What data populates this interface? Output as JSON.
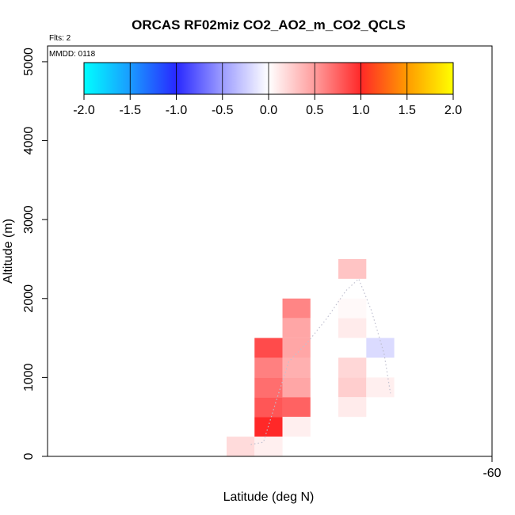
{
  "chart_data": {
    "type": "heatmap",
    "title": "ORCAS RF02miz CO2_AO2_m_CO2_QCLS",
    "flights_label": "Flts: 2",
    "date_label": "MMDD: 0118",
    "xlabel": "Latitude (deg N)",
    "ylabel": "Altitude (m)",
    "xlim": [
      -63.5,
      -60
    ],
    "ylim": [
      0,
      5200
    ],
    "x_ticks": [
      -60
    ],
    "y_ticks": [
      0,
      1000,
      2000,
      3000,
      4000,
      5000
    ],
    "colorbar": {
      "range": [
        -2.0,
        2.0
      ],
      "ticks": [
        "-2.0",
        "-1.5",
        "-1.0",
        "-0.5",
        "0.0",
        "0.5",
        "1.0",
        "1.5",
        "2.0"
      ],
      "stops": [
        {
          "value": -2.0,
          "color": "#00ffff"
        },
        {
          "value": -1.5,
          "color": "#1a9bff"
        },
        {
          "value": -1.0,
          "color": "#2828ff"
        },
        {
          "value": -0.5,
          "color": "#9c9cff"
        },
        {
          "value": 0.0,
          "color": "#ffffff"
        },
        {
          "value": 0.5,
          "color": "#ff9c9c"
        },
        {
          "value": 1.0,
          "color": "#ff2828"
        },
        {
          "value": 1.5,
          "color": "#ff9b00"
        },
        {
          "value": 2.0,
          "color": "#ffff00"
        }
      ]
    },
    "cell_size": {
      "dlat": 0.22,
      "dalt": 250
    },
    "cells": [
      {
        "lat": -61.1,
        "alt": 2375,
        "value": 0.3
      },
      {
        "lat": -61.54,
        "alt": 1875,
        "value": 0.6
      },
      {
        "lat": -61.1,
        "alt": 1875,
        "value": 0.03
      },
      {
        "lat": -61.54,
        "alt": 1625,
        "value": 0.45
      },
      {
        "lat": -61.1,
        "alt": 1625,
        "value": 0.1
      },
      {
        "lat": -61.76,
        "alt": 1375,
        "value": 0.85
      },
      {
        "lat": -61.54,
        "alt": 1375,
        "value": 0.45
      },
      {
        "lat": -60.88,
        "alt": 1375,
        "value": -0.18
      },
      {
        "lat": -61.76,
        "alt": 1125,
        "value": 0.62
      },
      {
        "lat": -61.54,
        "alt": 1125,
        "value": 0.4
      },
      {
        "lat": -61.1,
        "alt": 1125,
        "value": 0.2
      },
      {
        "lat": -61.76,
        "alt": 875,
        "value": 0.7
      },
      {
        "lat": -61.54,
        "alt": 875,
        "value": 0.45
      },
      {
        "lat": -61.1,
        "alt": 875,
        "value": 0.25
      },
      {
        "lat": -60.88,
        "alt": 875,
        "value": 0.08
      },
      {
        "lat": -61.76,
        "alt": 625,
        "value": 0.8
      },
      {
        "lat": -61.54,
        "alt": 625,
        "value": 0.75
      },
      {
        "lat": -61.1,
        "alt": 625,
        "value": 0.1
      },
      {
        "lat": -61.76,
        "alt": 375,
        "value": 1.0
      },
      {
        "lat": -61.54,
        "alt": 375,
        "value": 0.08
      },
      {
        "lat": -61.98,
        "alt": 125,
        "value": 0.18
      },
      {
        "lat": -61.76,
        "alt": 125,
        "value": 0.08
      }
    ],
    "flight_track": [
      {
        "lat": -61.9,
        "alt": 150
      },
      {
        "lat": -61.8,
        "alt": 180
      },
      {
        "lat": -61.7,
        "alt": 700
      },
      {
        "lat": -61.6,
        "alt": 1200
      },
      {
        "lat": -61.45,
        "alt": 1450
      },
      {
        "lat": -61.3,
        "alt": 1750
      },
      {
        "lat": -61.15,
        "alt": 2100
      },
      {
        "lat": -61.05,
        "alt": 2250
      },
      {
        "lat": -60.95,
        "alt": 1850
      },
      {
        "lat": -60.85,
        "alt": 1300
      },
      {
        "lat": -60.8,
        "alt": 800
      }
    ]
  }
}
